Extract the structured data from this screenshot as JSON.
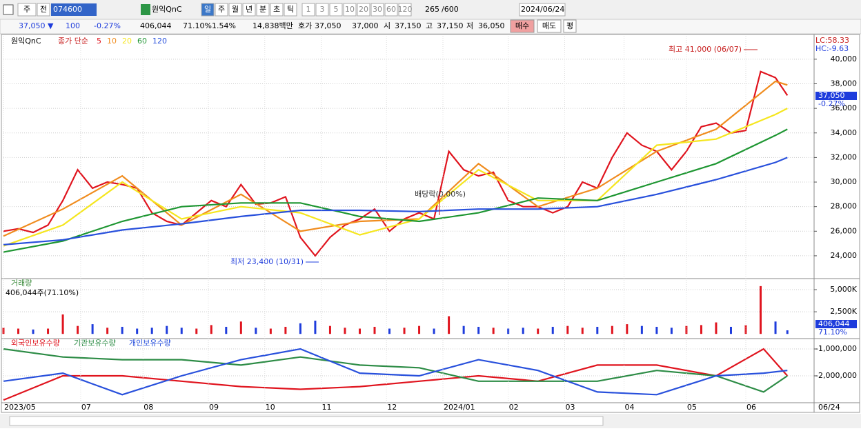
{
  "toolbar": {
    "period": "주",
    "prev": "전",
    "code": "074600",
    "name": "원익QnC",
    "intervals": [
      "일",
      "주",
      "월",
      "년",
      "분",
      "초",
      "틱"
    ],
    "numbers": [
      "1",
      "3",
      "5",
      "10",
      "20",
      "30",
      "60",
      "120"
    ],
    "count": "265",
    "max": "/600",
    "date": "2024/06/24"
  },
  "quote": {
    "price": "37,050 ▼",
    "change": "100",
    "rate": "-0.27%",
    "volume": "406,044",
    "vol_rate": "71.10%",
    "turnover": "1.54%",
    "amount": "14,838백만",
    "ask_label": "호가",
    "ask": "37,050",
    "bid": "37,000",
    "open_label": "시",
    "open": "37,150",
    "high_label": "고",
    "high": "37,150",
    "low_label": "저",
    "low": "36,050",
    "buy": "매수",
    "sell": "매도",
    "avg": "평"
  },
  "chart_data": [
    {
      "type": "line",
      "symbol": "원익QnC",
      "legend_label": "종가 단순",
      "lc": "LC:58.33",
      "hc": "HC:-9.63",
      "last_label": "37,050",
      "last_change": "-0.27%",
      "annotations": [
        "최고 41,000 (06/07)",
        "최저 23,400 (10/31)",
        "배당락(0.00%)"
      ],
      "xlim": [
        0,
        273
      ],
      "ylim": [
        22200,
        41900
      ],
      "yticks": [
        {
          "value": 24000,
          "label": "24,000"
        },
        {
          "value": 26000,
          "label": "26,000"
        },
        {
          "value": 28000,
          "label": "28,000"
        },
        {
          "value": 30000,
          "label": "30,000"
        },
        {
          "value": 32000,
          "label": "32,000"
        },
        {
          "value": 34000,
          "label": "34,000"
        },
        {
          "value": 36000,
          "label": "36,000"
        },
        {
          "value": 38000,
          "label": "38,000"
        },
        {
          "value": 40000,
          "label": "40,000"
        }
      ],
      "series": [
        {
          "name": "5",
          "color": "#e0141e",
          "x": [
            0,
            5,
            10,
            15,
            20,
            25,
            30,
            35,
            40,
            45,
            50,
            55,
            60,
            65,
            70,
            75,
            80,
            85,
            90,
            95,
            100,
            105,
            110,
            115,
            120,
            125,
            130,
            135,
            140,
            145,
            150,
            155,
            160,
            165,
            170,
            175,
            180,
            185,
            190,
            195,
            200,
            205,
            210,
            215,
            220,
            225,
            230,
            235,
            240,
            245,
            250,
            255,
            260,
            264
          ],
          "values": [
            26000,
            26200,
            25900,
            26500,
            28500,
            31000,
            29500,
            30000,
            29800,
            29500,
            27500,
            26800,
            26500,
            27500,
            28500,
            28000,
            29800,
            28200,
            28300,
            28800,
            25500,
            24000,
            25500,
            26500,
            27000,
            27800,
            26000,
            27000,
            27500,
            27000,
            32500,
            31000,
            30500,
            30800,
            28500,
            28000,
            28000,
            27500,
            28000,
            30000,
            29500,
            32000,
            34000,
            33000,
            32500,
            31000,
            32500,
            34500,
            34800,
            34000,
            34200,
            39000,
            38500,
            37050
          ]
        },
        {
          "name": "10",
          "color": "#f08c1e",
          "x": [
            0,
            20,
            40,
            60,
            80,
            100,
            120,
            140,
            160,
            180,
            200,
            220,
            240,
            260,
            264
          ],
          "values": [
            25600,
            27800,
            30500,
            26500,
            29000,
            26000,
            26800,
            27000,
            31500,
            28000,
            29500,
            32500,
            34300,
            38200,
            37900
          ]
        },
        {
          "name": "20",
          "color": "#f5e61e",
          "x": [
            0,
            20,
            40,
            60,
            80,
            100,
            120,
            140,
            160,
            180,
            200,
            220,
            240,
            260,
            264
          ],
          "values": [
            24800,
            26500,
            30000,
            27000,
            28000,
            27500,
            25700,
            27000,
            31000,
            28500,
            28500,
            33000,
            33500,
            35500,
            36000
          ]
        },
        {
          "name": "60",
          "color": "#1e9632",
          "x": [
            0,
            20,
            40,
            60,
            80,
            100,
            120,
            140,
            160,
            180,
            200,
            220,
            240,
            260,
            264
          ],
          "values": [
            24300,
            25200,
            26800,
            28000,
            28300,
            28300,
            27200,
            26800,
            27500,
            28700,
            28500,
            30000,
            31500,
            33800,
            34300
          ]
        },
        {
          "name": "120",
          "color": "#2850dc",
          "x": [
            0,
            20,
            40,
            60,
            80,
            100,
            120,
            140,
            160,
            180,
            200,
            220,
            240,
            260,
            264
          ],
          "values": [
            24900,
            25300,
            26100,
            26600,
            27200,
            27700,
            27700,
            27600,
            27800,
            27800,
            28000,
            29000,
            30200,
            31600,
            32000
          ]
        }
      ]
    },
    {
      "type": "bar",
      "title": "거래량",
      "subtitle": "406,044주(71.10%)",
      "last_label": "406,044",
      "last_rate": "71.10%",
      "up_color": "#e0141e",
      "down_color": "#1e3cdc",
      "xlim": [
        0,
        273
      ],
      "ylim": [
        -450,
        6170
      ],
      "yticks": [
        {
          "value": 2500,
          "label": "2,500K"
        },
        {
          "value": 5000,
          "label": "5,000K"
        }
      ],
      "x": [
        0,
        5,
        10,
        15,
        20,
        25,
        30,
        35,
        40,
        45,
        50,
        55,
        60,
        65,
        70,
        75,
        80,
        85,
        90,
        95,
        100,
        105,
        110,
        115,
        120,
        125,
        130,
        135,
        140,
        145,
        150,
        155,
        160,
        165,
        170,
        175,
        180,
        185,
        190,
        195,
        200,
        205,
        210,
        215,
        220,
        225,
        230,
        235,
        240,
        245,
        250,
        255,
        260,
        264
      ],
      "values": [
        700,
        600,
        500,
        600,
        2200,
        900,
        1100,
        700,
        800,
        600,
        700,
        900,
        700,
        600,
        1000,
        800,
        1400,
        700,
        600,
        800,
        1200,
        1500,
        900,
        700,
        600,
        800,
        600,
        700,
        900,
        600,
        2000,
        900,
        800,
        700,
        600,
        700,
        600,
        800,
        900,
        700,
        800,
        900,
        1100,
        900,
        800,
        700,
        900,
        1000,
        1300,
        800,
        1000,
        5400,
        1400,
        406
      ]
    },
    {
      "type": "line",
      "end_date": "06/24",
      "xlim": [
        0,
        273
      ],
      "ylim": [
        -2975000,
        -640000
      ],
      "yticks": [
        {
          "value": -1000000,
          "label": "-1,000,000"
        },
        {
          "value": -2000000,
          "label": "-2,000,000"
        }
      ],
      "xticks": [
        {
          "value": 0,
          "label": "2023/05"
        },
        {
          "value": 26,
          "label": "07"
        },
        {
          "value": 47,
          "label": "08"
        },
        {
          "value": 69,
          "label": "09"
        },
        {
          "value": 88,
          "label": "10"
        },
        {
          "value": 107,
          "label": "11"
        },
        {
          "value": 129,
          "label": "12"
        },
        {
          "value": 148,
          "label": "2024/01"
        },
        {
          "value": 170,
          "label": "02"
        },
        {
          "value": 189,
          "label": "03"
        },
        {
          "value": 209,
          "label": "04"
        },
        {
          "value": 230,
          "label": "05"
        },
        {
          "value": 250,
          "label": "06"
        }
      ],
      "series": [
        {
          "name": "외국인보유수량",
          "color": "#e0141e",
          "x": [
            0,
            20,
            40,
            60,
            80,
            100,
            120,
            140,
            160,
            180,
            200,
            220,
            240,
            256,
            264
          ],
          "values": [
            -2900000,
            -2000000,
            -2000000,
            -2200000,
            -2400000,
            -2500000,
            -2400000,
            -2200000,
            -2000000,
            -2200000,
            -1600000,
            -1600000,
            -2000000,
            -1000000,
            -2000000
          ]
        },
        {
          "name": "기관보유수량",
          "color": "#2d8c46",
          "x": [
            0,
            20,
            40,
            60,
            80,
            100,
            120,
            140,
            160,
            180,
            200,
            220,
            240,
            256,
            264
          ],
          "values": [
            -1000000,
            -1300000,
            -1400000,
            -1400000,
            -1600000,
            -1300000,
            -1600000,
            -1700000,
            -2200000,
            -2200000,
            -2200000,
            -1800000,
            -2000000,
            -2600000,
            -2000000
          ]
        },
        {
          "name": "개인보유수량",
          "color": "#2850dc",
          "x": [
            0,
            20,
            40,
            60,
            80,
            100,
            120,
            140,
            160,
            180,
            200,
            220,
            240,
            256,
            264
          ],
          "values": [
            -2200000,
            -1900000,
            -2700000,
            -2000000,
            -1400000,
            -1000000,
            -1900000,
            -2000000,
            -1400000,
            -1800000,
            -2600000,
            -2700000,
            -2000000,
            -1900000,
            -1800000
          ]
        }
      ]
    }
  ]
}
